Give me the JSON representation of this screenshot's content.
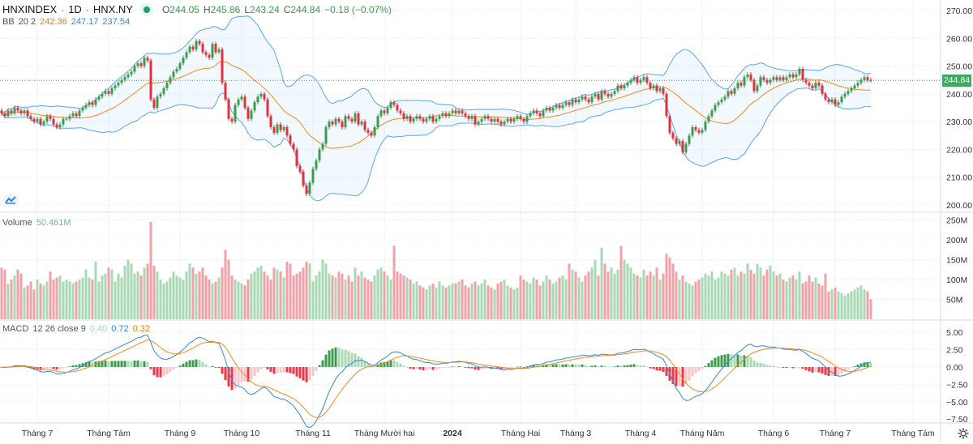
{
  "header": {
    "symbol": "HNXINDEX",
    "interval": "1D",
    "exchange": "HNX.NY",
    "sep": "·",
    "open_label": "O",
    "open": "244.05",
    "high_label": "H",
    "high": "245.86",
    "low_label": "L",
    "low": "243.24",
    "close_label": "C",
    "close": "244.84",
    "change": "−0.18 (−0.07%)"
  },
  "bb_legend": {
    "name": "BB",
    "params": "20 2",
    "basis": "242.36",
    "upper": "247.17",
    "lower": "237.54"
  },
  "volume_legend": {
    "name": "Volume",
    "value": "50.461M"
  },
  "macd_legend": {
    "name": "MACD",
    "params": "12 26 close 9",
    "hist": "0.40",
    "macd": "0.72",
    "signal": "0.32"
  },
  "last_price_tag": "244.84",
  "colors": {
    "up": "#3d9a4f",
    "down": "#e0323c",
    "vol_up": "#a8d8b4",
    "vol_down": "#f2a1a8",
    "bb_basis": "#f5891f",
    "bb_band": "#5aa6ee",
    "macd": "#2f8ae0",
    "signal": "#f5891f"
  },
  "chart_data": {
    "type": "candlestick",
    "title": "HNXINDEX · 1D · HNX.NY",
    "price_axis": {
      "ticks": [
        "270.00",
        "260.00",
        "250.00",
        "240.00",
        "230.00",
        "220.00",
        "210.00",
        "200.00"
      ],
      "range": [
        197,
        273
      ]
    },
    "volume_axis": {
      "ticks": [
        {
          "v": 250,
          "label": "250M"
        },
        {
          "v": 200,
          "label": "200M"
        },
        {
          "v": 150,
          "label": "150M"
        },
        {
          "v": 100,
          "label": "100M"
        },
        {
          "v": 50,
          "label": "50M"
        }
      ]
    },
    "macd_axis": {
      "ticks": [
        {
          "v": 5,
          "label": "5.00"
        },
        {
          "v": 2.5,
          "label": "2.50"
        },
        {
          "v": 0,
          "label": "0.00"
        },
        {
          "v": -2.5,
          "label": "−2.50"
        },
        {
          "v": -5,
          "label": "−5.00"
        },
        {
          "v": -7.5,
          "label": "−7.50"
        }
      ]
    },
    "time_axis": [
      {
        "label": "Tháng 7",
        "index": 11
      },
      {
        "label": "Tháng Tám",
        "index": 33
      },
      {
        "label": "Tháng 9",
        "index": 55
      },
      {
        "label": "Tháng 10",
        "index": 74
      },
      {
        "label": "Tháng 11",
        "index": 96
      },
      {
        "label": "Tháng Mười hai",
        "index": 118
      },
      {
        "label": "2024",
        "index": 139,
        "bold": true
      },
      {
        "label": "Tháng Hai",
        "index": 160
      },
      {
        "label": "Tháng 3",
        "index": 177
      },
      {
        "label": "Tháng 4",
        "index": 197
      },
      {
        "label": "Tháng Năm",
        "index": 216
      },
      {
        "label": "Tháng 6",
        "index": 238
      },
      {
        "label": "Tháng 7",
        "index": 257
      },
      {
        "label": "Tháng Tám",
        "index": 281
      }
    ],
    "closes": [
      233,
      232,
      234,
      233,
      235,
      234,
      233,
      234,
      232,
      231,
      230,
      231,
      229,
      230,
      232,
      231,
      229,
      228,
      229,
      231,
      231,
      232,
      233,
      232,
      234,
      235,
      236,
      237,
      236,
      238,
      239,
      240,
      241,
      240,
      242,
      243,
      244,
      245,
      246,
      247,
      248,
      250,
      251,
      250,
      253,
      252,
      238,
      235,
      239,
      240,
      242,
      244,
      246,
      248,
      249,
      251,
      253,
      255,
      257,
      256,
      259,
      258,
      255,
      254,
      253,
      258,
      255,
      256,
      244,
      238,
      231,
      230,
      236,
      238,
      239,
      235,
      231,
      234,
      237,
      239,
      240,
      238,
      232,
      228,
      226,
      229,
      227,
      228,
      225,
      222,
      220,
      214,
      212,
      207,
      204,
      208,
      213,
      216,
      220,
      222,
      228,
      230,
      229,
      231,
      230,
      228,
      232,
      231,
      230,
      233,
      229,
      230,
      227,
      226,
      225,
      228,
      232,
      234,
      233,
      235,
      237,
      236,
      234,
      233,
      231,
      232,
      230,
      231,
      232,
      231,
      230,
      231,
      232,
      230,
      231,
      232,
      233,
      232,
      233,
      234,
      233,
      234,
      233,
      232,
      231,
      232,
      229,
      230,
      231,
      232,
      231,
      230,
      231,
      230,
      229,
      230,
      231,
      230,
      231,
      232,
      231,
      230,
      232,
      233,
      234,
      233,
      232,
      234,
      235,
      234,
      235,
      236,
      235,
      236,
      237,
      236,
      238,
      237,
      238,
      239,
      238,
      237,
      239,
      240,
      238,
      241,
      240,
      239,
      240,
      241,
      243,
      242,
      243,
      244,
      245,
      246,
      244,
      245,
      246,
      244,
      242,
      243,
      241,
      242,
      240,
      232,
      226,
      224,
      222,
      223,
      219,
      222,
      225,
      228,
      227,
      226,
      227,
      230,
      232,
      234,
      236,
      237,
      238,
      239,
      241,
      240,
      242,
      244,
      243,
      246,
      247,
      245,
      241,
      243,
      246,
      245,
      244,
      245,
      246,
      245,
      246,
      245,
      246,
      247,
      246,
      247,
      249,
      245,
      244,
      243,
      242,
      244,
      243,
      240,
      238,
      237,
      238,
      236,
      237,
      239,
      240,
      241,
      242,
      243,
      244,
      245,
      246,
      245,
      244.84
    ],
    "volumes_m": [
      130,
      125,
      90,
      100,
      110,
      125,
      115,
      80,
      85,
      95,
      75,
      100,
      90,
      85,
      95,
      120,
      100,
      105,
      110,
      95,
      100,
      95,
      90,
      95,
      100,
      105,
      125,
      105,
      100,
      145,
      95,
      110,
      115,
      130,
      125,
      95,
      115,
      105,
      135,
      150,
      140,
      115,
      120,
      110,
      130,
      140,
      245,
      135,
      120,
      100,
      90,
      95,
      105,
      120,
      110,
      105,
      100,
      120,
      140,
      130,
      115,
      120,
      130,
      110,
      100,
      90,
      95,
      105,
      130,
      175,
      150,
      110,
      100,
      95,
      90,
      85,
      100,
      115,
      120,
      130,
      135,
      120,
      110,
      100,
      130,
      125,
      120,
      105,
      145,
      140,
      110,
      115,
      120,
      130,
      145,
      140,
      95,
      110,
      120,
      150,
      140,
      115,
      110,
      105,
      120,
      115,
      100,
      110,
      95,
      130,
      110,
      120,
      105,
      100,
      95,
      110,
      125,
      130,
      120,
      110,
      100,
      185,
      120,
      115,
      110,
      105,
      100,
      90,
      95,
      85,
      80,
      75,
      85,
      90,
      80,
      95,
      85,
      80,
      85,
      90,
      90,
      95,
      100,
      85,
      80,
      90,
      95,
      85,
      90,
      100,
      85,
      80,
      75,
      90,
      95,
      100,
      85,
      80,
      75,
      80,
      110,
      100,
      95,
      90,
      105,
      100,
      85,
      95,
      110,
      100,
      90,
      95,
      105,
      110,
      100,
      140,
      125,
      120,
      105,
      95,
      110,
      120,
      130,
      150,
      110,
      180,
      140,
      120,
      130,
      115,
      125,
      185,
      150,
      140,
      130,
      115,
      110,
      105,
      125,
      110,
      120,
      110,
      130,
      100,
      115,
      165,
      155,
      140,
      120,
      100,
      110,
      95,
      90,
      85,
      95,
      100,
      105,
      115,
      110,
      120,
      100,
      105,
      120,
      115,
      110,
      125,
      130,
      110,
      120,
      115,
      140,
      125,
      115,
      140,
      130,
      110,
      125,
      135,
      120,
      110,
      115,
      100,
      95,
      105,
      110,
      100,
      120,
      90,
      95,
      110,
      95,
      105,
      90,
      85,
      115,
      70,
      75,
      80,
      70,
      65,
      60,
      65,
      70,
      75,
      80,
      85,
      75,
      70,
      50.461
    ],
    "indicators": {
      "bollinger": {
        "length": 20,
        "mult": 2
      },
      "macd": {
        "fast": 12,
        "slow": 26,
        "signal": 9
      }
    }
  }
}
